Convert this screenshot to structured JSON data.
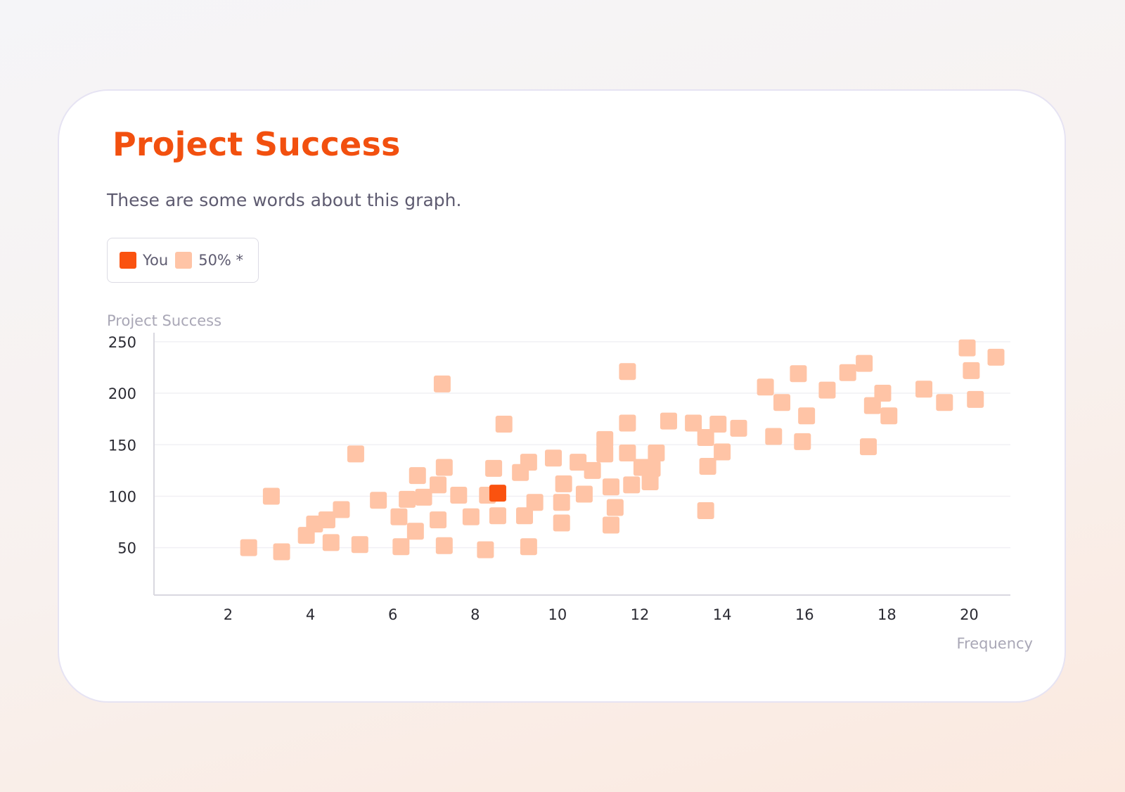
{
  "card": {
    "title": "Project Success",
    "subtitle": "These are some words about this graph."
  },
  "legend": [
    {
      "label": "You",
      "color": "#fa520f"
    },
    {
      "label": "50% *",
      "color": "#ffc4a6"
    }
  ],
  "chart_data": {
    "type": "scatter",
    "ylabel": "Project Success",
    "xlabel": "Frequency",
    "xlim": [
      0.2,
      21
    ],
    "ylim": [
      4,
      254
    ],
    "x_ticks": [
      2,
      4,
      6,
      8,
      10,
      12,
      14,
      16,
      18,
      20
    ],
    "y_ticks": [
      50,
      100,
      150,
      200,
      250
    ],
    "grid": {
      "horizontal": true,
      "vertical": false
    },
    "marker": "rounded-square",
    "series": [
      {
        "name": "50% *",
        "color": "#ffc4a6",
        "points": [
          [
            2.5,
            50
          ],
          [
            3.05,
            100
          ],
          [
            3.3,
            46
          ],
          [
            3.9,
            62
          ],
          [
            4.1,
            73
          ],
          [
            4.4,
            77
          ],
          [
            4.5,
            55
          ],
          [
            4.75,
            87
          ],
          [
            5.1,
            141
          ],
          [
            5.2,
            53
          ],
          [
            5.65,
            96
          ],
          [
            6.15,
            80
          ],
          [
            6.2,
            51
          ],
          [
            6.35,
            97
          ],
          [
            6.55,
            66
          ],
          [
            6.6,
            120
          ],
          [
            6.75,
            99
          ],
          [
            7.1,
            77
          ],
          [
            7.1,
            111
          ],
          [
            7.2,
            209
          ],
          [
            7.25,
            128
          ],
          [
            7.25,
            52
          ],
          [
            7.6,
            101
          ],
          [
            7.9,
            80
          ],
          [
            8.3,
            101
          ],
          [
            8.25,
            48
          ],
          [
            8.45,
            127
          ],
          [
            8.55,
            81
          ],
          [
            8.7,
            170
          ],
          [
            9.1,
            123
          ],
          [
            9.2,
            81
          ],
          [
            9.3,
            133
          ],
          [
            9.3,
            51
          ],
          [
            9.45,
            94
          ],
          [
            9.9,
            137
          ],
          [
            10.1,
            74
          ],
          [
            10.1,
            94
          ],
          [
            10.15,
            112
          ],
          [
            10.5,
            133
          ],
          [
            10.65,
            102
          ],
          [
            10.85,
            125
          ],
          [
            11.15,
            155
          ],
          [
            11.15,
            141
          ],
          [
            11.3,
            109
          ],
          [
            11.3,
            72
          ],
          [
            11.4,
            89
          ],
          [
            11.7,
            221
          ],
          [
            11.7,
            171
          ],
          [
            11.7,
            142
          ],
          [
            11.8,
            111
          ],
          [
            12.05,
            128
          ],
          [
            12.3,
            127
          ],
          [
            12.25,
            114
          ],
          [
            12.4,
            142
          ],
          [
            12.7,
            173
          ],
          [
            13.3,
            171
          ],
          [
            13.6,
            157
          ],
          [
            13.6,
            86
          ],
          [
            13.65,
            129
          ],
          [
            13.9,
            170
          ],
          [
            14.0,
            143
          ],
          [
            14.4,
            166
          ],
          [
            15.05,
            206
          ],
          [
            15.25,
            158
          ],
          [
            15.45,
            191
          ],
          [
            15.85,
            219
          ],
          [
            15.95,
            153
          ],
          [
            16.05,
            178
          ],
          [
            16.55,
            203
          ],
          [
            17.05,
            220
          ],
          [
            17.45,
            229
          ],
          [
            17.55,
            148
          ],
          [
            17.65,
            188
          ],
          [
            17.9,
            200
          ],
          [
            18.05,
            178
          ],
          [
            18.9,
            204
          ],
          [
            19.4,
            191
          ],
          [
            19.95,
            244
          ],
          [
            20.05,
            222
          ],
          [
            20.15,
            194
          ],
          [
            20.65,
            235
          ]
        ]
      },
      {
        "name": "You",
        "color": "#fa520f",
        "points": [
          [
            8.55,
            103
          ]
        ]
      }
    ]
  }
}
